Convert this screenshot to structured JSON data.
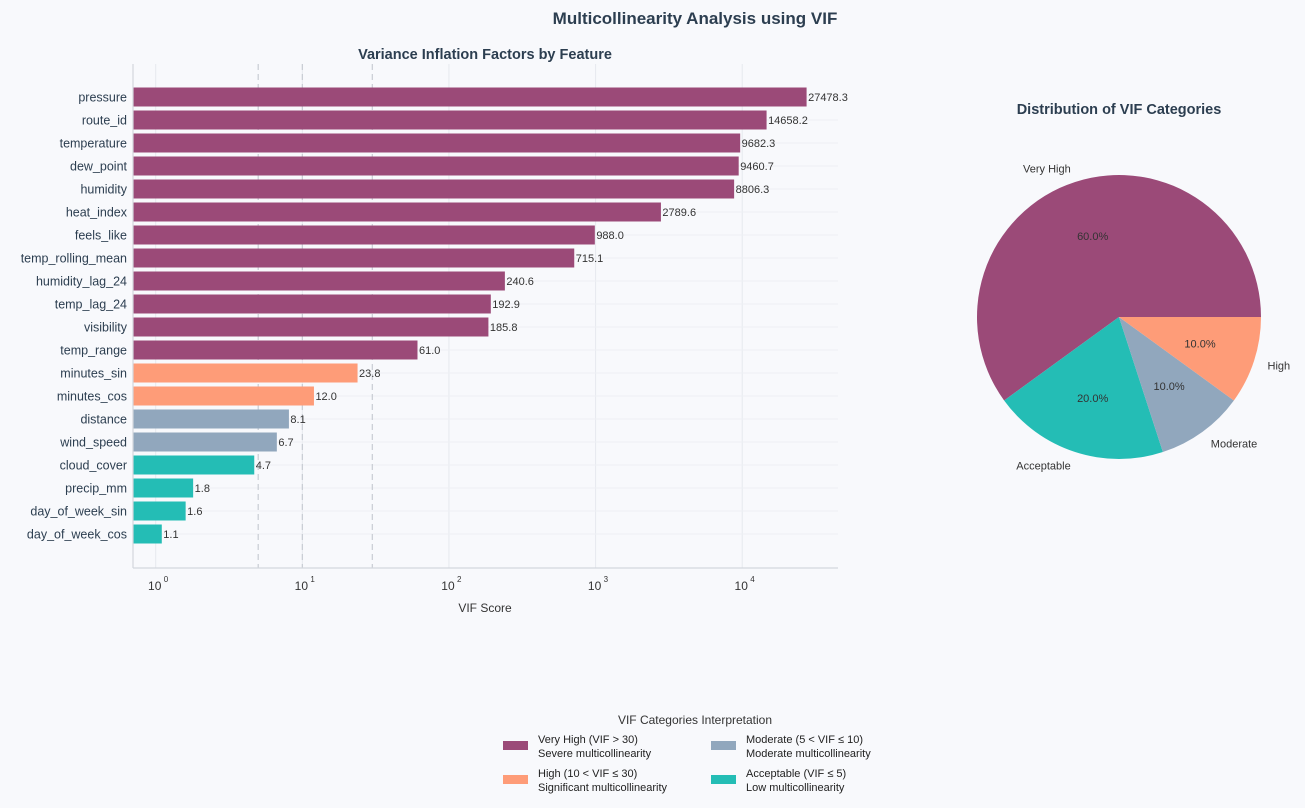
{
  "suptitle": "Multicollinearity Analysis using VIF",
  "colors": {
    "very_high": "#9b4a78",
    "high": "#fe9c78",
    "moderate": "#91a7bd",
    "acceptable": "#24bdb5"
  },
  "chart_data": [
    {
      "type": "bar",
      "orientation": "horizontal",
      "title": "Variance Inflation Factors by Feature",
      "xlabel": "VIF Score",
      "xscale": "log",
      "xlim": [
        0.7,
        45000
      ],
      "xticks": [
        {
          "base": "10",
          "exp": "0",
          "value": 1
        },
        {
          "base": "10",
          "exp": "1",
          "value": 10
        },
        {
          "base": "10",
          "exp": "2",
          "value": 100
        },
        {
          "base": "10",
          "exp": "3",
          "value": 1000
        },
        {
          "base": "10",
          "exp": "4",
          "value": 10000
        }
      ],
      "threshold_lines": [
        5,
        10,
        30
      ],
      "grid": true,
      "categories": [
        "pressure",
        "route_id",
        "temperature",
        "dew_point",
        "humidity",
        "heat_index",
        "feels_like",
        "temp_rolling_mean",
        "humidity_lag_24",
        "temp_lag_24",
        "visibility",
        "temp_range",
        "minutes_sin",
        "minutes_cos",
        "distance",
        "wind_speed",
        "cloud_cover",
        "precip_mm",
        "day_of_week_sin",
        "day_of_week_cos"
      ],
      "values": [
        27478.3,
        14658.2,
        9682.3,
        9460.7,
        8806.3,
        2789.6,
        988.0,
        715.1,
        240.6,
        192.9,
        185.8,
        61.0,
        23.8,
        12.0,
        8.1,
        6.7,
        4.7,
        1.8,
        1.6,
        1.1
      ],
      "labels": [
        "27478.3",
        "14658.2",
        "9682.3",
        "9460.7",
        "8806.3",
        "2789.6",
        "988.0",
        "715.1",
        "240.6",
        "192.9",
        "185.8",
        "61.0",
        "23.8",
        "12.0",
        "8.1",
        "6.7",
        "4.7",
        "1.8",
        "1.6",
        "1.1"
      ],
      "category_level": [
        "very_high",
        "very_high",
        "very_high",
        "very_high",
        "very_high",
        "very_high",
        "very_high",
        "very_high",
        "very_high",
        "very_high",
        "very_high",
        "very_high",
        "high",
        "high",
        "moderate",
        "moderate",
        "acceptable",
        "acceptable",
        "acceptable",
        "acceptable"
      ]
    },
    {
      "type": "pie",
      "title": "Distribution of VIF Categories",
      "slices": [
        {
          "label": "Very High",
          "value": 60.0,
          "pct_label": "60.0%",
          "color_key": "very_high"
        },
        {
          "label": "Acceptable",
          "value": 20.0,
          "pct_label": "20.0%",
          "color_key": "acceptable"
        },
        {
          "label": "Moderate",
          "value": 10.0,
          "pct_label": "10.0%",
          "color_key": "moderate"
        },
        {
          "label": "High",
          "value": 10.0,
          "pct_label": "10.0%",
          "color_key": "high"
        }
      ]
    }
  ],
  "legend": {
    "title": "VIF Categories Interpretation",
    "placement": "bottom-center",
    "items": [
      {
        "line1": "Very High (VIF > 30)",
        "line2": "Severe multicollinearity",
        "color_key": "very_high"
      },
      {
        "line1": "High (10 < VIF ≤ 30)",
        "line2": "Significant multicollinearity",
        "color_key": "high"
      },
      {
        "line1": "Moderate (5 < VIF ≤ 10)",
        "line2": "Moderate multicollinearity",
        "color_key": "moderate"
      },
      {
        "line1": "Acceptable (VIF ≤ 5)",
        "line2": "Low multicollinearity",
        "color_key": "acceptable"
      }
    ]
  }
}
